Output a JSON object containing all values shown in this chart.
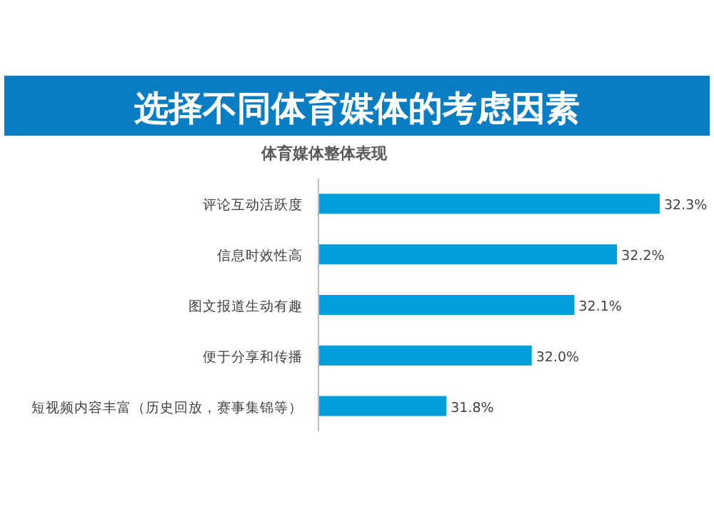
{
  "chart_data": {
    "type": "bar",
    "orientation": "horizontal",
    "title": "选择不同体育媒体的考虑因素",
    "subtitle": "体育媒体整体表现",
    "categories": [
      "评论互动活跃度",
      "信息时效性高",
      "图文报道生动有趣",
      "便于分享和传播",
      "短视频内容丰富（历史回放，赛事集锦等）"
    ],
    "values": [
      32.3,
      32.2,
      32.1,
      32.0,
      31.8
    ],
    "value_labels": [
      "32.3%",
      "32.2%",
      "32.1%",
      "32.0%",
      "31.8%"
    ],
    "color": "#009fd9",
    "xlim": [
      31.5,
      32.3
    ],
    "tick_labels": "y"
  }
}
